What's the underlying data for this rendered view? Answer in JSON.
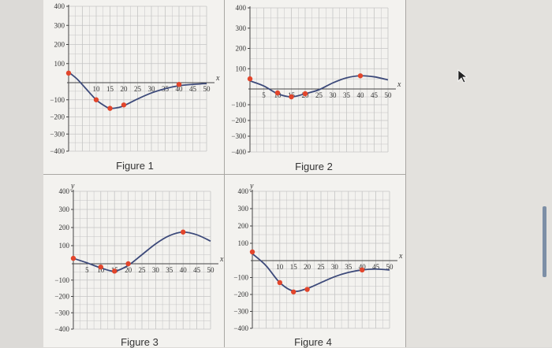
{
  "chart_data": [
    {
      "type": "line",
      "caption": "Figure 1",
      "xlabel": "x",
      "ylabel": "",
      "xlim": [
        0,
        50
      ],
      "ylim": [
        -400,
        400
      ],
      "x_ticks": [
        10,
        15,
        20,
        25,
        30,
        35,
        40,
        45,
        50
      ],
      "y_ticks": [
        400,
        300,
        200,
        100,
        -100,
        -200,
        -300,
        -400
      ],
      "grid": true,
      "curve": [
        [
          0,
          55
        ],
        [
          3,
          20
        ],
        [
          6,
          -30
        ],
        [
          10,
          -100
        ],
        [
          13,
          -135
        ],
        [
          15,
          -150
        ],
        [
          18,
          -145
        ],
        [
          20,
          -135
        ],
        [
          25,
          -95
        ],
        [
          30,
          -60
        ],
        [
          35,
          -35
        ],
        [
          40,
          -18
        ],
        [
          45,
          -10
        ],
        [
          50,
          -5
        ]
      ],
      "points": [
        [
          0,
          50
        ],
        [
          10,
          -100
        ],
        [
          15,
          -150
        ],
        [
          20,
          -130
        ],
        [
          40,
          -10
        ]
      ]
    },
    {
      "type": "line",
      "caption": "Figure 2",
      "xlabel": "x",
      "ylabel": "",
      "xlim": [
        0,
        50
      ],
      "ylim": [
        -400,
        400
      ],
      "x_ticks": [
        5,
        10,
        15,
        20,
        25,
        30,
        35,
        40,
        45,
        50
      ],
      "y_ticks": [
        400,
        300,
        200,
        100,
        -100,
        -200,
        -300,
        -400
      ],
      "grid": true,
      "curve": [
        [
          0,
          40
        ],
        [
          5,
          15
        ],
        [
          10,
          -30
        ],
        [
          15,
          -50
        ],
        [
          20,
          -30
        ],
        [
          25,
          -5
        ],
        [
          30,
          30
        ],
        [
          35,
          55
        ],
        [
          40,
          65
        ],
        [
          45,
          60
        ],
        [
          50,
          45
        ]
      ],
      "points": [
        [
          0,
          50
        ],
        [
          10,
          -25
        ],
        [
          15,
          -50
        ],
        [
          20,
          -30
        ],
        [
          40,
          65
        ]
      ]
    },
    {
      "type": "line",
      "caption": "Figure 3",
      "xlabel": "x",
      "ylabel": "y",
      "xlim": [
        0,
        50
      ],
      "ylim": [
        -400,
        400
      ],
      "x_ticks": [
        5,
        10,
        15,
        20,
        25,
        30,
        35,
        40,
        45,
        50
      ],
      "y_ticks": [
        400,
        300,
        200,
        100,
        -100,
        -200,
        -300,
        -400
      ],
      "grid": true,
      "curve": [
        [
          0,
          30
        ],
        [
          5,
          5
        ],
        [
          10,
          -25
        ],
        [
          15,
          -45
        ],
        [
          20,
          -10
        ],
        [
          25,
          50
        ],
        [
          30,
          110
        ],
        [
          35,
          155
        ],
        [
          40,
          175
        ],
        [
          45,
          160
        ],
        [
          50,
          125
        ]
      ],
      "points": [
        [
          0,
          30
        ],
        [
          10,
          -20
        ],
        [
          15,
          -45
        ],
        [
          20,
          0
        ],
        [
          40,
          175
        ]
      ]
    },
    {
      "type": "line",
      "caption": "Figure 4",
      "xlabel": "x",
      "ylabel": "y",
      "xlim": [
        0,
        50
      ],
      "ylim": [
        -400,
        400
      ],
      "x_ticks": [
        10,
        15,
        20,
        25,
        30,
        35,
        40,
        45,
        50
      ],
      "y_ticks": [
        400,
        300,
        200,
        100,
        -100,
        -200,
        -300,
        -400
      ],
      "grid": true,
      "curve": [
        [
          0,
          40
        ],
        [
          5,
          -30
        ],
        [
          10,
          -130
        ],
        [
          15,
          -180
        ],
        [
          20,
          -165
        ],
        [
          25,
          -130
        ],
        [
          30,
          -95
        ],
        [
          35,
          -70
        ],
        [
          40,
          -55
        ],
        [
          45,
          -50
        ],
        [
          50,
          -55
        ]
      ],
      "points": [
        [
          0,
          50
        ],
        [
          10,
          -130
        ],
        [
          15,
          -185
        ],
        [
          20,
          -170
        ],
        [
          40,
          -55
        ]
      ]
    }
  ],
  "colors": {
    "curve": "#3d4a7a",
    "point": "#e2452b",
    "grid": "#c4c4c4",
    "axis": "#444444"
  },
  "icons": {
    "cursor": "mouse-pointer-icon"
  }
}
